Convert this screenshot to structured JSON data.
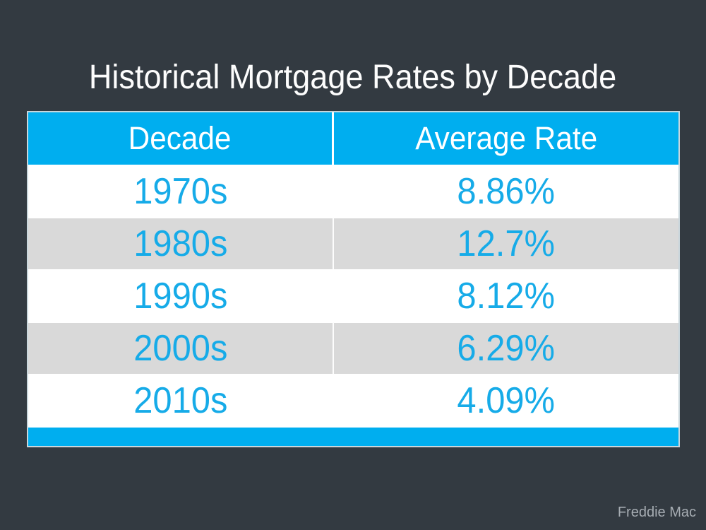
{
  "page": {
    "title": "Historical Mortgage Rates by Decade",
    "source_label": "Freddie Mac"
  },
  "colors": {
    "background": "#333A41",
    "accent_cyan": "#00AEEF",
    "row_white": "#FFFFFF",
    "row_gray": "#D9D9D9",
    "data_text_cyan": "#16ABE8",
    "title_text": "#FDFDFD",
    "source_text": "#A6ACB2"
  },
  "chart_data": {
    "type": "table",
    "title": "Historical Mortgage Rates by Decade",
    "columns": [
      "Decade",
      "Average Rate"
    ],
    "rows": [
      [
        "1970s",
        "8.86%"
      ],
      [
        "1980s",
        "12.7%"
      ],
      [
        "1990s",
        "8.12%"
      ],
      [
        "2000s",
        "6.29%"
      ],
      [
        "2010s",
        "4.09%"
      ]
    ],
    "values_numeric": [
      8.86,
      12.7,
      8.12,
      6.29,
      4.09
    ],
    "source": "Freddie Mac",
    "layout_hints": {
      "header_style": "cyan background, white text",
      "banding": "alternating white and light-gray rows",
      "footer": "solid cyan bar, no text"
    }
  }
}
